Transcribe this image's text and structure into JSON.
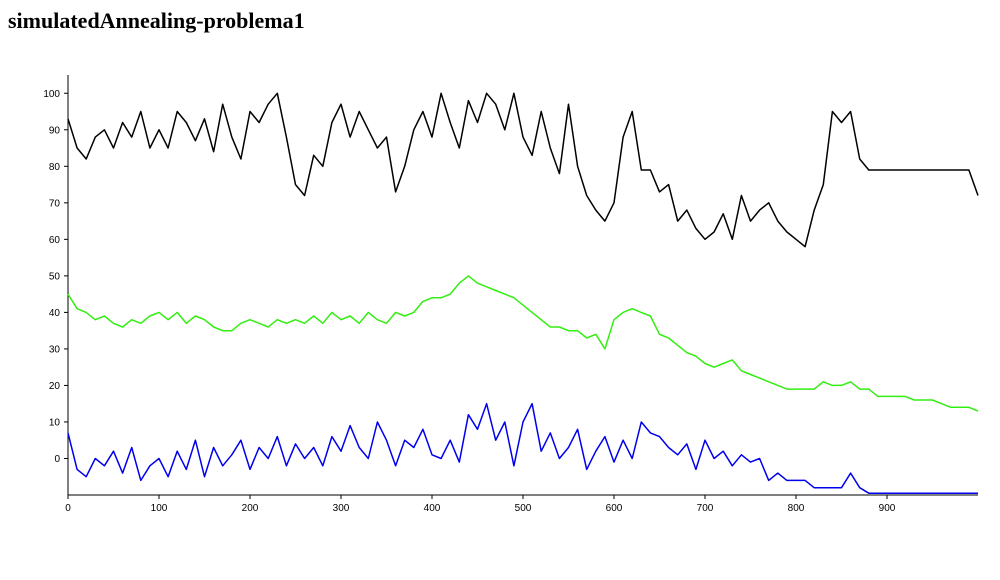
{
  "chart_data": {
    "type": "line",
    "title": "simulatedAnnealing-problema1",
    "x": [
      0,
      10,
      20,
      30,
      40,
      50,
      60,
      70,
      80,
      90,
      100,
      110,
      120,
      130,
      140,
      150,
      160,
      170,
      180,
      190,
      200,
      210,
      220,
      230,
      240,
      250,
      260,
      270,
      280,
      290,
      300,
      310,
      320,
      330,
      340,
      350,
      360,
      370,
      380,
      390,
      400,
      410,
      420,
      430,
      440,
      450,
      460,
      470,
      480,
      490,
      500,
      510,
      520,
      530,
      540,
      550,
      560,
      570,
      580,
      590,
      600,
      610,
      620,
      630,
      640,
      650,
      660,
      670,
      680,
      690,
      700,
      710,
      720,
      730,
      740,
      750,
      760,
      770,
      780,
      790,
      800,
      810,
      820,
      830,
      840,
      850,
      860,
      870,
      880,
      890,
      900,
      910,
      920,
      930,
      940,
      950,
      960,
      970,
      980,
      990,
      1000
    ],
    "series": [
      {
        "color": "#000000",
        "values": [
          93,
          85,
          82,
          88,
          90,
          85,
          92,
          88,
          95,
          85,
          90,
          85,
          95,
          92,
          87,
          93,
          84,
          97,
          88,
          82,
          95,
          92,
          97,
          100,
          88,
          75,
          72,
          83,
          80,
          92,
          97,
          88,
          95,
          90,
          85,
          88,
          73,
          80,
          90,
          95,
          88,
          100,
          92,
          85,
          98,
          92,
          100,
          97,
          90,
          100,
          88,
          83,
          95,
          85,
          78,
          97,
          80,
          72,
          68,
          65,
          70,
          88,
          95,
          79,
          79,
          73,
          75,
          65,
          68,
          63,
          60,
          62,
          67,
          60,
          72,
          65,
          68,
          70,
          65,
          62,
          60,
          58,
          68,
          75,
          95,
          92,
          95,
          82,
          79,
          79,
          79,
          79,
          79,
          79,
          79,
          79,
          79,
          79,
          79,
          79,
          72
        ]
      },
      {
        "color": "#33ee11",
        "values": [
          45,
          41,
          40,
          38,
          39,
          37,
          36,
          38,
          37,
          39,
          40,
          38,
          40,
          37,
          39,
          38,
          36,
          35,
          35,
          37,
          38,
          37,
          36,
          38,
          37,
          38,
          37,
          39,
          37,
          40,
          38,
          39,
          37,
          40,
          38,
          37,
          40,
          39,
          40,
          43,
          44,
          44,
          45,
          48,
          50,
          48,
          47,
          46,
          45,
          44,
          42,
          40,
          38,
          36,
          36,
          35,
          35,
          33,
          34,
          30,
          38,
          40,
          41,
          40,
          39,
          34,
          33,
          31,
          29,
          28,
          26,
          25,
          26,
          27,
          24,
          23,
          22,
          21,
          20,
          19,
          19,
          19,
          19,
          21,
          20,
          20,
          21,
          19,
          19,
          17,
          17,
          17,
          17,
          16,
          16,
          16,
          15,
          14,
          14,
          14,
          13
        ]
      },
      {
        "color": "#0000ee",
        "values": [
          7,
          -3,
          -5,
          0,
          -2,
          2,
          -4,
          3,
          -6,
          -2,
          0,
          -5,
          2,
          -3,
          5,
          -5,
          3,
          -2,
          1,
          5,
          -3,
          3,
          0,
          6,
          -2,
          4,
          0,
          3,
          -2,
          6,
          2,
          9,
          3,
          0,
          10,
          5,
          -2,
          5,
          3,
          8,
          1,
          0,
          5,
          -1,
          12,
          8,
          15,
          5,
          10,
          -2,
          10,
          15,
          2,
          7,
          0,
          3,
          8,
          -3,
          2,
          6,
          -1,
          5,
          0,
          10,
          7,
          6,
          3,
          1,
          4,
          -3,
          5,
          0,
          2,
          -2,
          1,
          -1,
          0,
          -6,
          -4,
          -6,
          -6,
          -6,
          -8,
          -8,
          -8,
          -8,
          -4,
          -8,
          -9.5,
          -9.5,
          -9.5,
          -9.5,
          -9.5,
          -9.5,
          -9.5,
          -9.5,
          -9.5,
          -9.5,
          -9.5,
          -9.5,
          -9.5
        ]
      }
    ],
    "xlim": [
      0,
      1000
    ],
    "ylim": [
      -10,
      105
    ],
    "xticks": [
      0,
      100,
      200,
      300,
      400,
      500,
      600,
      700,
      800,
      900
    ],
    "yticks": [
      0,
      10,
      20,
      30,
      40,
      50,
      60,
      70,
      80,
      90,
      100
    ]
  }
}
